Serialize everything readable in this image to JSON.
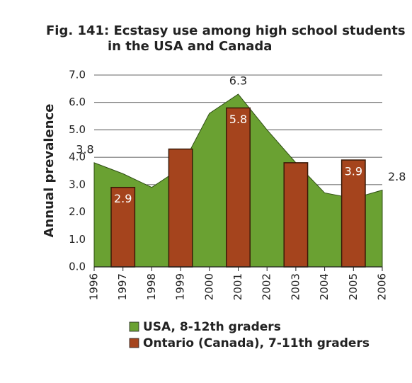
{
  "chart_data": {
    "type": "bar",
    "title": [
      "Fig. 141:  Ecstasy use among high school students",
      "in the USA and Canada"
    ],
    "y_label": "Annual prevalence",
    "x": [
      1996,
      1997,
      1998,
      1999,
      2000,
      2001,
      2002,
      2003,
      2004,
      2005,
      2006
    ],
    "series": [
      {
        "name": "USA, 8-12th graders",
        "type": "area",
        "color": "#6aa132",
        "values": [
          3.8,
          3.4,
          2.9,
          3.6,
          5.6,
          6.3,
          5.0,
          3.8,
          2.7,
          2.5,
          2.8
        ],
        "value_labels": [
          "3.8",
          null,
          null,
          null,
          null,
          "6.3",
          null,
          null,
          null,
          null,
          "2.8"
        ]
      },
      {
        "name": "Ontario (Canada), 7-11th graders",
        "type": "bar",
        "color": "#a5441d",
        "values": [
          null,
          2.9,
          null,
          4.3,
          null,
          5.8,
          null,
          3.8,
          null,
          3.9,
          null
        ],
        "value_labels": [
          null,
          "2.9",
          null,
          null,
          null,
          "5.8",
          null,
          null,
          null,
          "3.9",
          null
        ]
      }
    ],
    "xlim": [
      1996,
      2006
    ],
    "ylim": [
      0,
      7
    ],
    "yticks": [
      {
        "value": 0,
        "label": "0.0"
      },
      {
        "value": 1,
        "label": "1.0"
      },
      {
        "value": 2,
        "label": "2.0"
      },
      {
        "value": 3,
        "label": "3.0"
      },
      {
        "value": 4,
        "label": "4.0"
      },
      {
        "value": 5,
        "label": "5.0"
      },
      {
        "value": 6,
        "label": "6.0"
      },
      {
        "value": 7,
        "label": "7.0"
      }
    ],
    "grid": true
  }
}
